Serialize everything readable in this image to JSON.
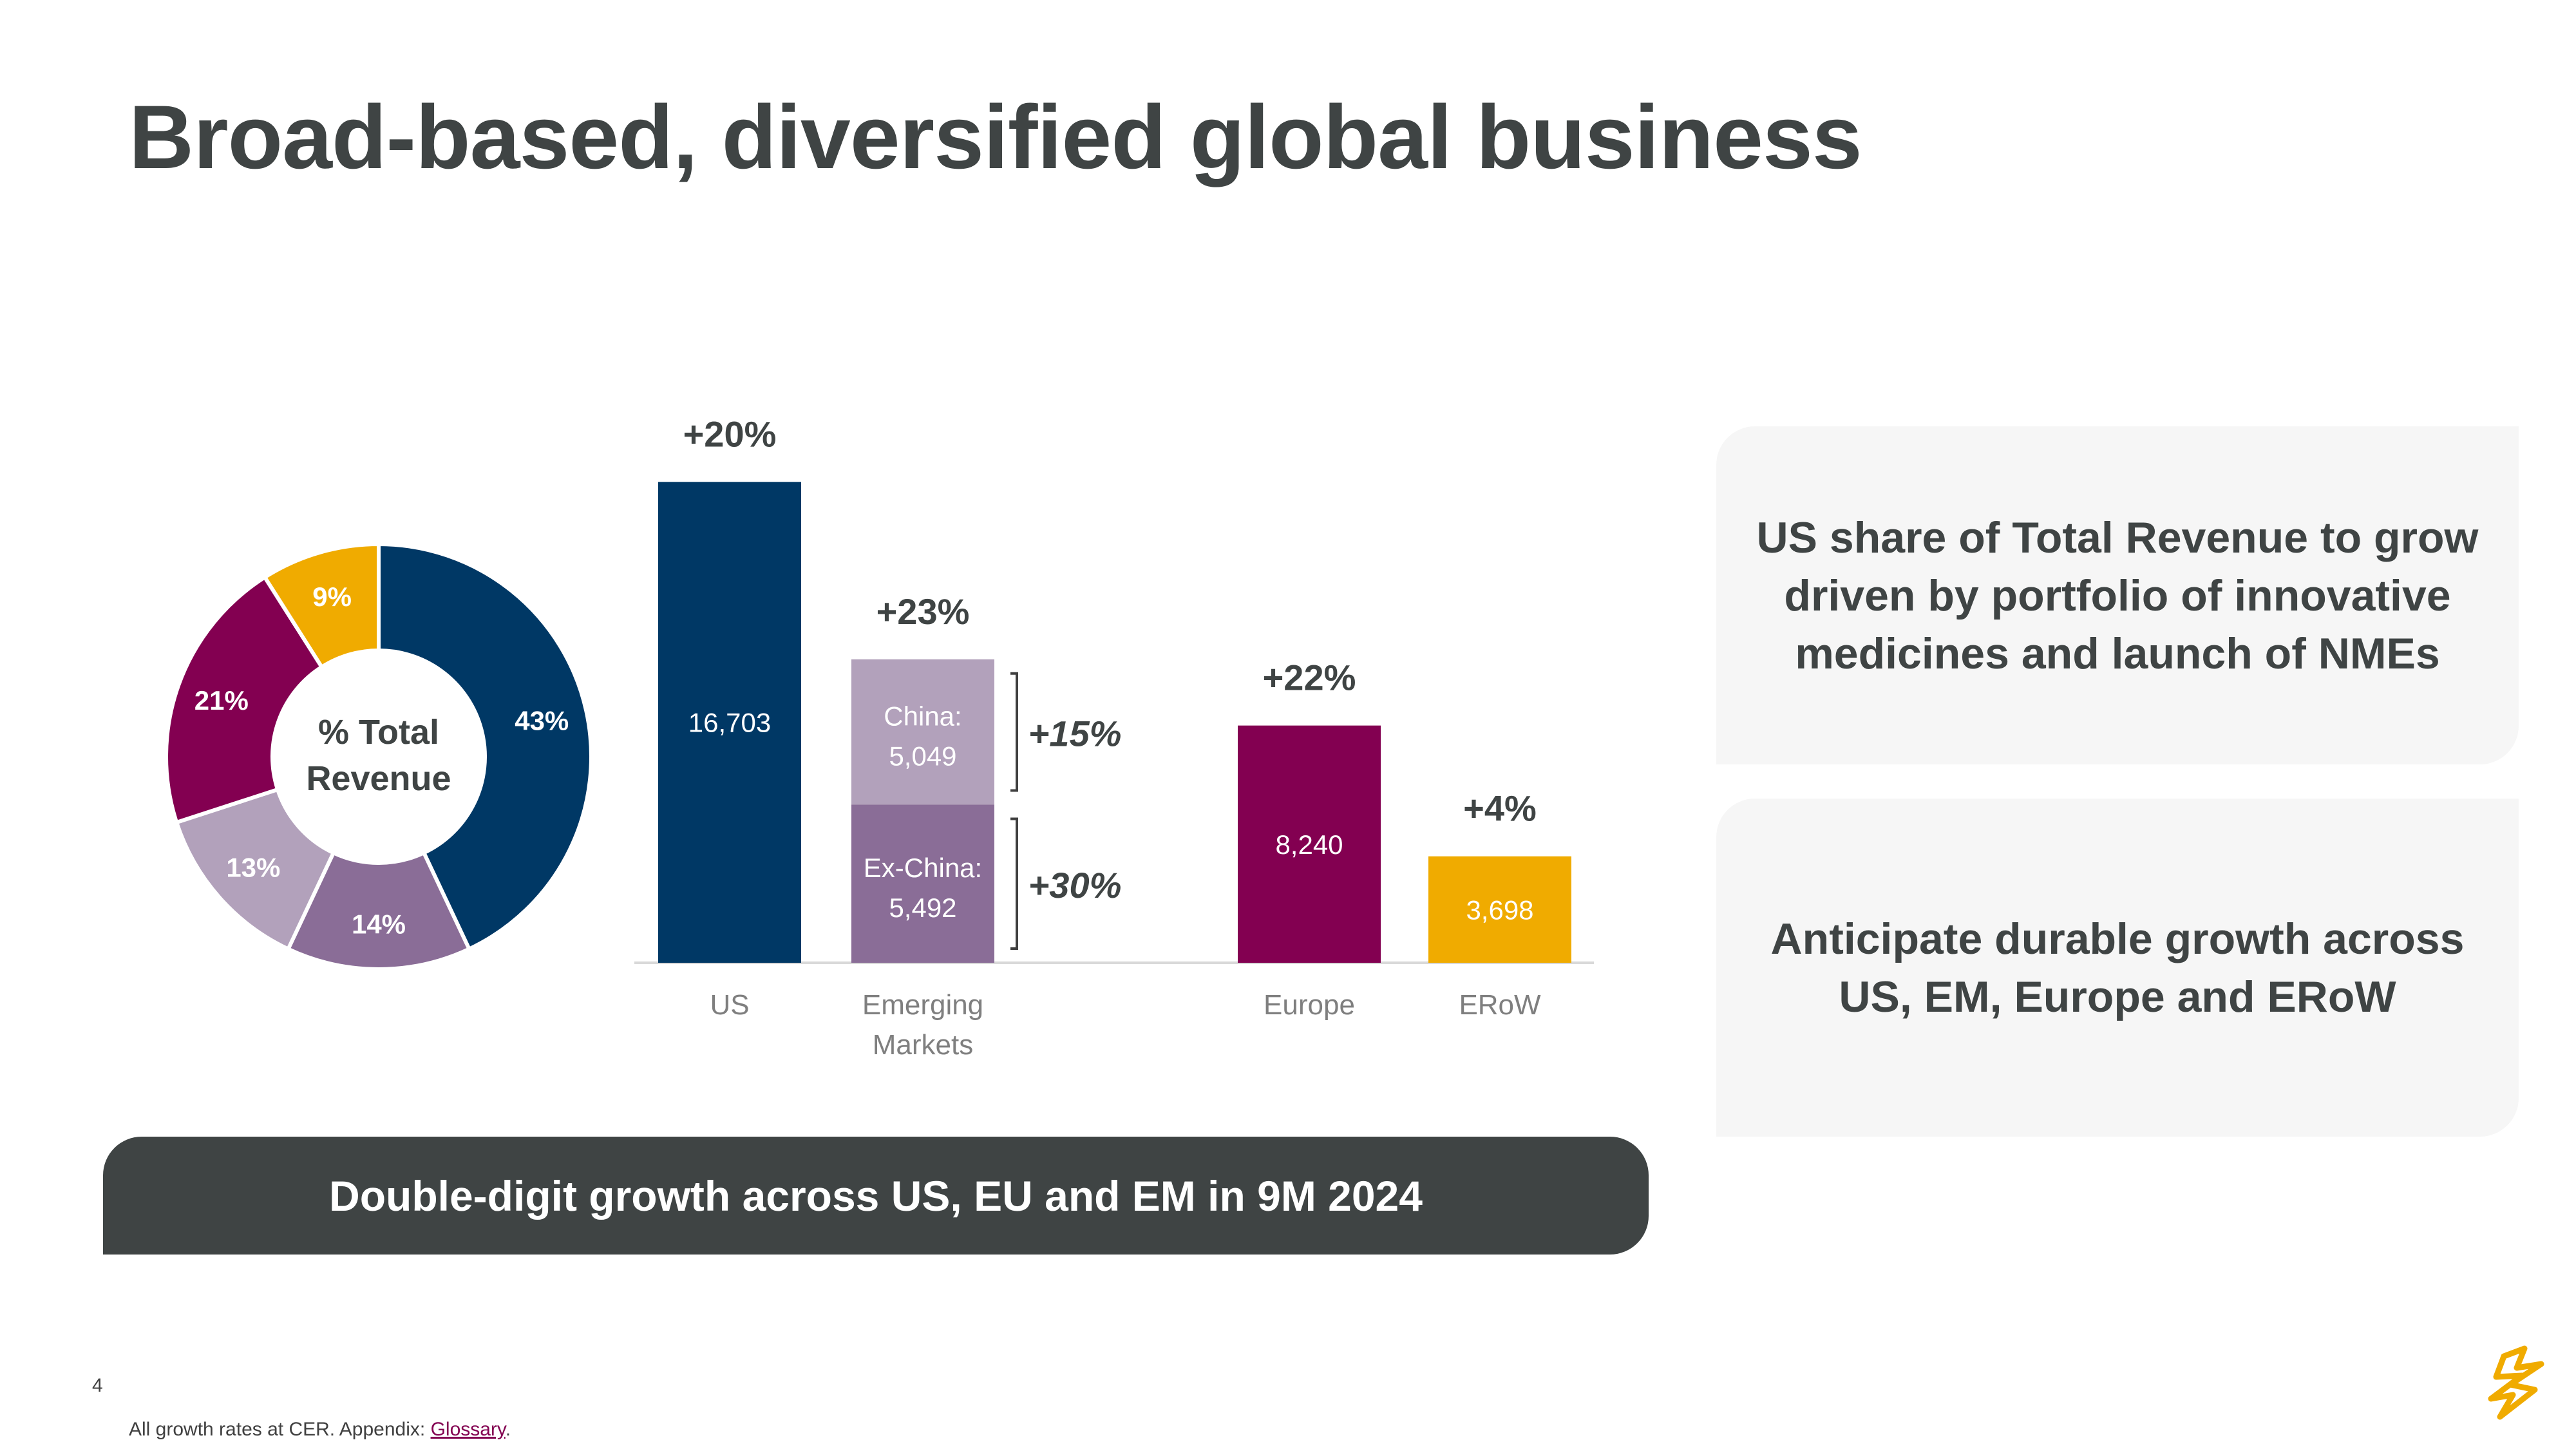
{
  "title": "Broad-based, diversified global business",
  "colors": {
    "navy": "#003865",
    "light_lilac": "#b2a1bb",
    "purple": "#8a6d97",
    "magenta": "#830051",
    "gold": "#f0ab00",
    "dark_grey": "#3f4444",
    "panel_grey": "#f6f6f6"
  },
  "chart_data": [
    {
      "type": "pie",
      "center_label": [
        "% Total",
        "Revenue"
      ],
      "slices": [
        {
          "label": "US",
          "value": 43,
          "display": "43%",
          "color": "#003865"
        },
        {
          "label": "Emerging Markets Ex-China",
          "value": 14,
          "display": "14%",
          "color": "#8a6d97"
        },
        {
          "label": "Emerging Markets China",
          "value": 13,
          "display": "13%",
          "color": "#b2a1bb"
        },
        {
          "label": "Europe",
          "value": 21,
          "display": "21%",
          "color": "#830051"
        },
        {
          "label": "ERoW",
          "value": 9,
          "display": "9%",
          "color": "#f0ab00"
        }
      ]
    },
    {
      "type": "bar",
      "ylim": [
        0,
        17000
      ],
      "bars": [
        {
          "category": "US",
          "growth": "+20%",
          "segments": [
            {
              "value": 16703,
              "label": "16,703",
              "color": "#003865"
            }
          ]
        },
        {
          "category": "Emerging Markets",
          "growth": "+23%",
          "segments": [
            {
              "value": 5492,
              "name": "Ex-China:",
              "label": "5,492",
              "color": "#8a6d97",
              "growth": "+30%"
            },
            {
              "value": 5049,
              "name": "China:",
              "label": "5,049",
              "color": "#b2a1bb",
              "growth": "+15%"
            }
          ]
        },
        {
          "category": "Europe",
          "growth": "+22%",
          "segments": [
            {
              "value": 8240,
              "label": "8,240",
              "color": "#830051"
            }
          ]
        },
        {
          "category": "ERoW",
          "growth": "+4%",
          "segments": [
            {
              "value": 3698,
              "label": "3,698",
              "color": "#f0ab00"
            }
          ]
        }
      ]
    }
  ],
  "panels": [
    {
      "text": "US share of Total Revenue to grow driven by portfolio of innovative medicines and launch of NMEs"
    },
    {
      "text": "Anticipate durable growth across US, EM, Europe and ERoW"
    }
  ],
  "banner": "Double-digit growth across US, EU and EM in 9M 2024",
  "page_number": "4",
  "footnote": {
    "prefix": "All growth rates at CER. Appendix: ",
    "link": "Glossary",
    "suffix": "."
  }
}
